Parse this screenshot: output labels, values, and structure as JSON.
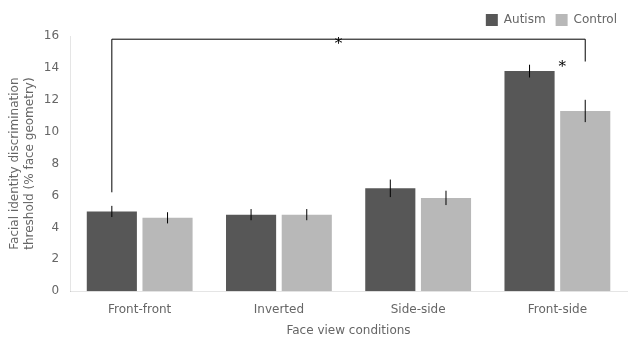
{
  "chart_data": {
    "type": "bar",
    "categories": [
      "Front-front",
      "Inverted",
      "Side-side",
      "Front-side"
    ],
    "series": [
      {
        "name": "Autism",
        "color": "#575757",
        "values": [
          5.0,
          4.8,
          6.45,
          13.8
        ],
        "errors": [
          0.35,
          0.35,
          0.55,
          0.4
        ]
      },
      {
        "name": "Control",
        "color": "#b8b8b8",
        "values": [
          4.6,
          4.8,
          5.85,
          11.3
        ],
        "errors": [
          0.35,
          0.35,
          0.45,
          0.7
        ]
      }
    ],
    "xlabel": "Face view conditions",
    "ylabel": "Facial identity discrimination\nthreshold (% face geometry)",
    "ylim": [
      0,
      16
    ],
    "yticks": [
      0,
      2,
      4,
      6,
      8,
      10,
      12,
      14,
      16
    ],
    "grid": false,
    "legend": "upper right",
    "annotations": [
      {
        "text": "*",
        "bracket": {
          "y": 15.8,
          "from": {
            "category": "Front-front",
            "series": "Autism",
            "y": 6.2
          },
          "to": {
            "category": "Front-side",
            "series": "Control",
            "y": 14.4
          }
        }
      },
      {
        "text": "*",
        "category": "Front-side",
        "series": "Autism"
      }
    ]
  }
}
